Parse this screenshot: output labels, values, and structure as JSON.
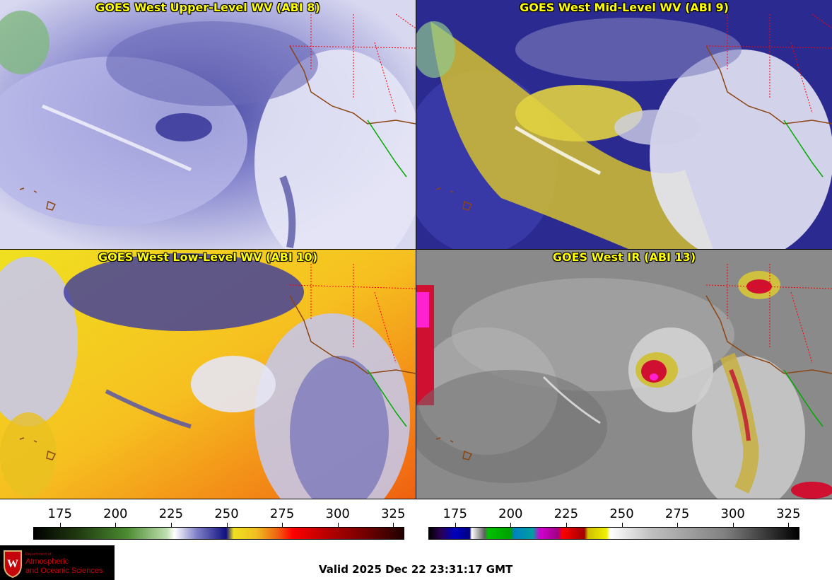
{
  "panels": [
    {
      "title": "GOES West Upper-Level WV (ABI 8)"
    },
    {
      "title": "GOES West Mid-Level WV (ABI 9)"
    },
    {
      "title": "GOES West Low-Level WV (ABI 10)"
    },
    {
      "title": "GOES West IR (ABI 13)"
    }
  ],
  "colorbar_wv": {
    "ticks": [
      "175",
      "200",
      "225",
      "250",
      "275",
      "300",
      "325"
    ],
    "range": [
      163,
      330
    ],
    "tick_values": [
      175,
      200,
      225,
      250,
      275,
      300,
      325
    ]
  },
  "colorbar_ir": {
    "ticks": [
      "175",
      "200",
      "225",
      "250",
      "275",
      "300",
      "325"
    ],
    "range": [
      163,
      330
    ],
    "tick_values": [
      175,
      200,
      225,
      250,
      275,
      300,
      325
    ]
  },
  "logo": {
    "dept": "Department of",
    "line1": "Atmospheric",
    "line2": "and Oceanic Sciences"
  },
  "valid_time": "Valid 2025 Dec 22 23:31:17 GMT",
  "colors": {
    "title_text": "#ffff00",
    "state_borders": "#ff0000",
    "coast": "#8b4513",
    "mexico_border": "#00aa00"
  }
}
